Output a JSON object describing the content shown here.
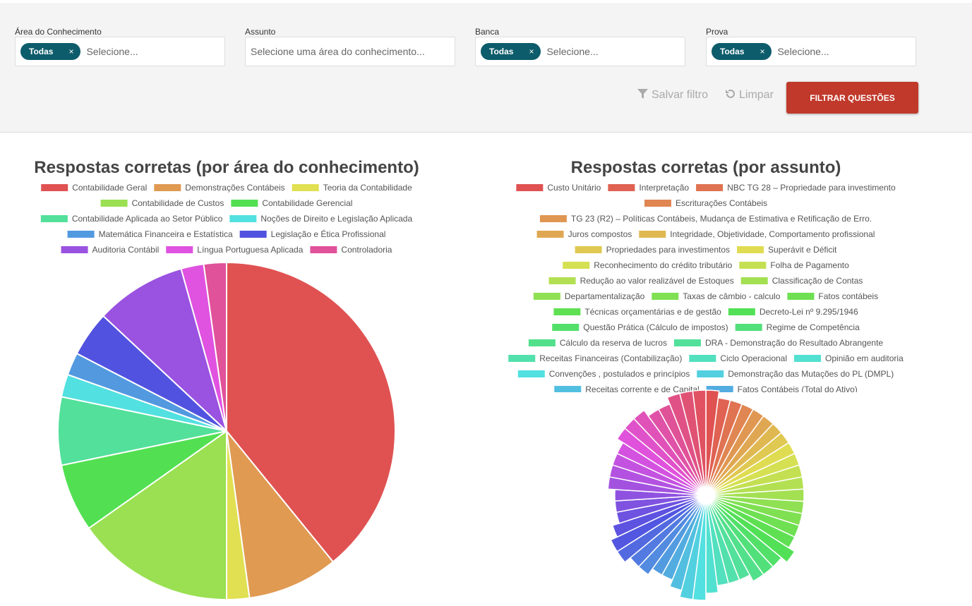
{
  "filters": [
    {
      "label": "Área do Conhecimento",
      "chip": "Todas",
      "placeholder": "Selecione..."
    },
    {
      "label": "Assunto",
      "placeholder": "Selecione uma área do conhecimento..."
    },
    {
      "label": "Banca",
      "chip": "Todas",
      "placeholder": "Selecione..."
    },
    {
      "label": "Prova",
      "chip": "Todas",
      "placeholder": "Selecione..."
    }
  ],
  "buttons": {
    "save": "Salvar filtro",
    "clear": "Limpar",
    "submit": "FILTRAR QUESTÕES"
  },
  "chart_data": [
    {
      "type": "pie",
      "title": "Respostas corretas (por área do conhecimento)",
      "categories": [
        "Contabilidade Geral",
        "Demonstrações Contábeis",
        "Teoria da Contabilidade",
        "Contabilidade de Custos",
        "Contabilidade Gerencial",
        "Contabilidade Aplicada ao Setor Público",
        "Noções de Direito e Legislação Aplicada",
        "Matemática Financeira e Estatística",
        "Legislação e Ética Profissional",
        "Auditoria Contábil",
        "Língua Portuguesa Aplicada",
        "Controladoria"
      ],
      "values": [
        18,
        4,
        1,
        7,
        3,
        3,
        1,
        1,
        2,
        4,
        1,
        1
      ],
      "colors": [
        "#e05252",
        "#e09a52",
        "#e0e052",
        "#9ae052",
        "#52e052",
        "#52e09a",
        "#52e0e0",
        "#5299e0",
        "#5252e0",
        "#9a52e0",
        "#e052e0",
        "#e0529a"
      ]
    },
    {
      "type": "polarArea",
      "title": "Respostas corretas (por assunto)",
      "categories": [
        "Custo Unitário",
        "Interpretação",
        "NBC TG 28 – Propriedade para investimento",
        "Escriturações Contábeis",
        "TG 23 (R2) – Políticas Contábeis, Mudança de Estimativa e Retificação de Erro.",
        "Juros compostos",
        "Integridade, Objetividade, Comportamento profissional",
        "Propriedades para investimentos",
        "Superávit e Déficit",
        "Reconhecimento do crédito tributário",
        "Folha de Pagamento",
        "Redução ao valor realizável de Estoques",
        "Classificação de Contas",
        "Departamentalização",
        "Taxas de câmbio - calculo",
        "Fatos contábeis",
        "Técnicas orçamentárias e de gestão",
        "Decreto-Lei nº 9.295/1946",
        "Questão Prática (Cálculo de impostos)",
        "Regime de Competência",
        "Cálculo da reserva de lucros",
        "DRA - Demonstração do Resultado Abrangente",
        "Receitas Financeiras (Contabilização)",
        "Ciclo Operacional",
        "Opinião em auditoria",
        "Convenções , postulados e princípios",
        "Demonstração das Mutações do PL (DMPL)",
        "Receitas corrente e de Capital",
        "Fatos Contábeis (Total do Ativo)",
        null,
        null,
        null,
        null,
        null,
        null,
        null,
        null,
        null,
        null,
        null,
        null,
        null,
        null,
        null,
        null,
        null,
        null,
        null,
        null,
        null
      ],
      "values": [
        15,
        14,
        14,
        14,
        14,
        14,
        14,
        14,
        14,
        14,
        14,
        14,
        14,
        14,
        14,
        14,
        14,
        15,
        14,
        14,
        14,
        13,
        13,
        13,
        14,
        15,
        15,
        14,
        13,
        13,
        14,
        14,
        15,
        15,
        14,
        13,
        13,
        13,
        14,
        14,
        14,
        14,
        15,
        15,
        15,
        14,
        14,
        15,
        15,
        15
      ],
      "colors": [
        "hsl(0,70%,60%)",
        "hsl(7,70%,60%)",
        "hsl(14,70%,60%)",
        "hsl(22,70%,60%)",
        "hsl(29,70%,60%)",
        "hsl(36,70%,60%)",
        "hsl(43,70%,60%)",
        "hsl(50,70%,60%)",
        "hsl(58,70%,60%)",
        "hsl(65,70%,60%)",
        "hsl(72,70%,60%)",
        "hsl(79,70%,60%)",
        "hsl(86,70%,60%)",
        "hsl(94,70%,60%)",
        "hsl(101,70%,60%)",
        "hsl(108,70%,60%)",
        "hsl(115,70%,60%)",
        "hsl(122,70%,60%)",
        "hsl(130,70%,60%)",
        "hsl(137,70%,60%)",
        "hsl(144,70%,60%)",
        "hsl(151,70%,60%)",
        "hsl(158,70%,60%)",
        "hsl(166,70%,60%)",
        "hsl(173,70%,60%)",
        "hsl(180,70%,60%)",
        "hsl(187,70%,60%)",
        "hsl(194,70%,60%)",
        "hsl(202,70%,60%)",
        "hsl(209,70%,60%)",
        "hsl(216,70%,60%)",
        "hsl(223,70%,60%)",
        "hsl(230,70%,60%)",
        "hsl(238,70%,60%)",
        "hsl(245,70%,60%)",
        "hsl(252,70%,60%)",
        "hsl(259,70%,60%)",
        "hsl(266,70%,60%)",
        "hsl(274,70%,60%)",
        "hsl(281,70%,60%)",
        "hsl(288,70%,60%)",
        "hsl(295,70%,60%)",
        "hsl(302,70%,60%)",
        "hsl(310,70%,60%)",
        "hsl(317,70%,60%)",
        "hsl(324,70%,60%)",
        "hsl(331,70%,60%)",
        "hsl(338,70%,60%)",
        "hsl(346,70%,60%)",
        "hsl(353,70%,60%)"
      ]
    }
  ]
}
